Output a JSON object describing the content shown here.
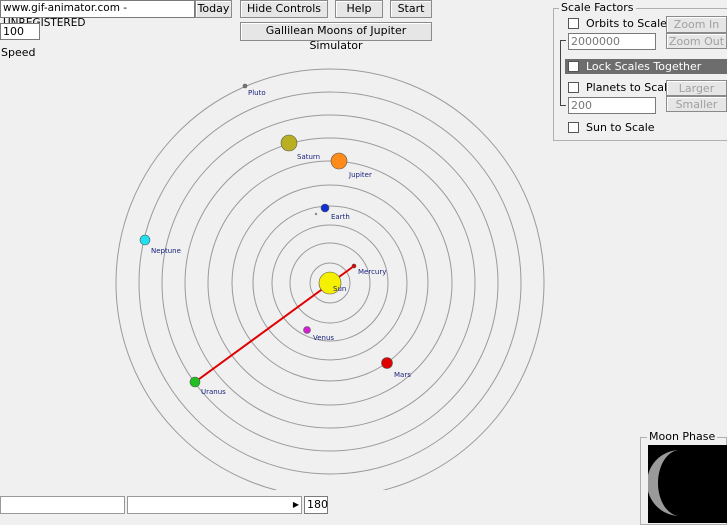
{
  "watermark": "www.gif-animator.com - UNREGISTERED",
  "toolbar": {
    "today": "Today",
    "hide_controls": "Hide Controls",
    "help": "Help",
    "start": "Start",
    "simulator": "Gallilean Moons of Jupiter Simulator"
  },
  "speed": {
    "value": 100,
    "label": "Speed"
  },
  "scale_factors": {
    "title": "Scale Factors",
    "orbits_to_scale": "Orbits to Scale",
    "zoom_in": "Zoom In",
    "zoom_out": "Zoom Out",
    "orbit_scale": 2000000,
    "lock_scales": "Lock  Scales  Together",
    "planets_to_scale": "Planets to Scale",
    "larger": "Larger",
    "smaller": "Smaller",
    "planet_scale": 200,
    "sun_to_scale": "Sun to Scale"
  },
  "planets": [
    "Sun",
    "Mercury",
    "Venus",
    "Earth",
    "Mars",
    "Jupiter",
    "Saturn",
    "Uranus",
    "Neptune",
    "Pluto"
  ],
  "moon_phase": {
    "title": "Moon Phase"
  },
  "day": 180
}
